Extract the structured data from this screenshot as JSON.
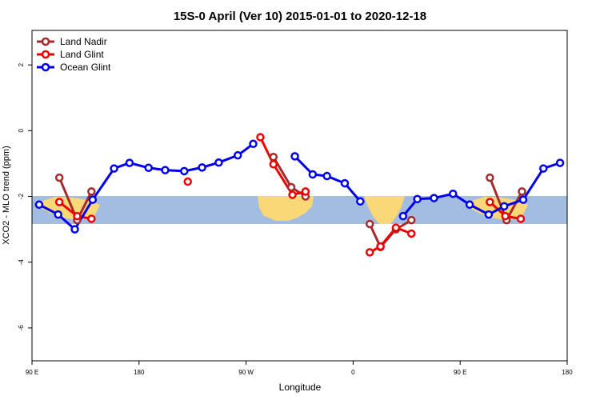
{
  "chart_data": {
    "type": "line",
    "title": "15S-0 April (Ver 10)   2015-01-01 to 2020-12-18",
    "x_label": "Longitude",
    "y_label": "XCO2 - MLO trend (ppm)",
    "xlim": [
      90,
      540
    ],
    "ylim": [
      -7,
      3.05
    ],
    "xticks": [
      {
        "value": 90,
        "label": "90 E"
      },
      {
        "value": 180,
        "label": "180"
      },
      {
        "value": 270,
        "label": "90 W"
      },
      {
        "value": 360,
        "label": "0"
      },
      {
        "value": 450,
        "label": "90 E"
      },
      {
        "value": 540,
        "label": "180"
      }
    ],
    "yticks": [
      -6,
      -4,
      -2,
      0,
      2
    ],
    "legend": "top-left",
    "series": [
      {
        "name": "Land Nadir",
        "color": "#a52a2a",
        "x": [
          113,
          128,
          140,
          null,
          293,
          308,
          320,
          null,
          374,
          383,
          396,
          409,
          null,
          475,
          489,
          502
        ],
        "values": [
          -1.43,
          -2.72,
          -1.85,
          null,
          -0.8,
          -1.72,
          -2.0,
          null,
          -2.84,
          -3.54,
          -3.0,
          -2.72,
          null,
          -1.43,
          -2.72,
          -1.85
        ]
      },
      {
        "name": "Land Glint",
        "color": "#ee0000",
        "x": [
          113,
          128,
          140,
          null,
          221,
          null,
          282,
          293,
          309,
          320,
          null,
          374,
          383,
          396,
          409,
          null,
          475,
          488,
          501
        ],
        "values": [
          -2.17,
          -2.6,
          -2.68,
          null,
          -1.55,
          null,
          -0.2,
          -1.02,
          -1.95,
          -1.85,
          null,
          -3.7,
          -3.52,
          -2.95,
          -3.13,
          null,
          -2.17,
          -2.6,
          -2.68
        ]
      },
      {
        "name": "Ocean Glint",
        "color": "#0000ee",
        "x": [
          96,
          112,
          126,
          141,
          159,
          172,
          188,
          202,
          218,
          233,
          247,
          263,
          276,
          null,
          311,
          326,
          338,
          353,
          366,
          null,
          402,
          414,
          428,
          444,
          458,
          474,
          487,
          503,
          520,
          534
        ],
        "values": [
          -2.25,
          -2.55,
          -3.0,
          -2.1,
          -1.15,
          -0.98,
          -1.13,
          -1.2,
          -1.23,
          -1.12,
          -0.97,
          -0.75,
          -0.4,
          null,
          -0.78,
          -1.33,
          -1.38,
          -1.6,
          -2.15,
          null,
          -2.6,
          -2.08,
          -2.05,
          -1.92,
          -2.25,
          -2.55,
          -2.3,
          -2.1,
          -1.15,
          -0.98
        ]
      }
    ]
  }
}
